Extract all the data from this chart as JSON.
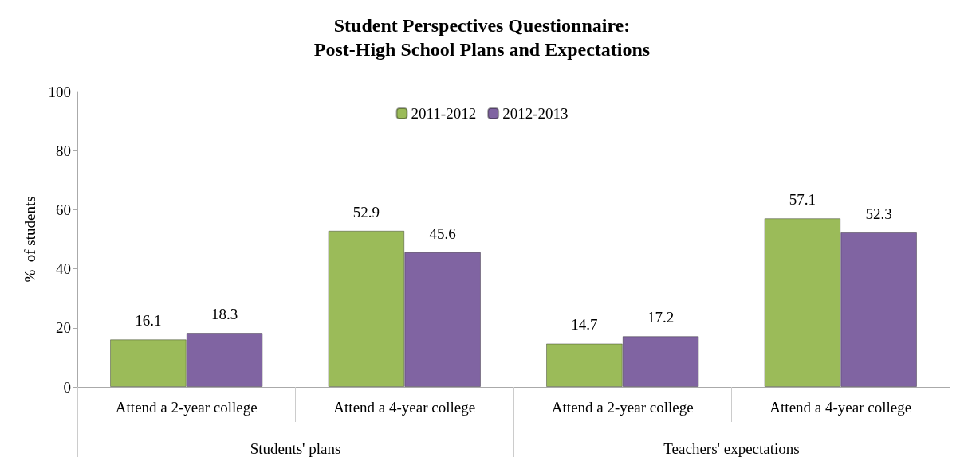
{
  "chart_data": {
    "type": "bar",
    "title": "Student Perspectives Questionnaire:\nPost-High School Plans and Expectations",
    "ylabel": "%  of students",
    "categories": [
      "Attend a 2-year college",
      "Attend a 4-year college",
      "Attend a 2-year college",
      "Attend a 4-year college"
    ],
    "series": [
      {
        "name": "2011-2012",
        "color": "#9bbb59",
        "values": [
          16.1,
          52.9,
          14.7,
          57.1
        ]
      },
      {
        "name": "2012-2013",
        "color": "#8064a2",
        "values": [
          18.3,
          45.6,
          17.2,
          52.3
        ]
      }
    ],
    "annotations": [
      "Students' plans",
      "Teachers' expectations"
    ],
    "ylim": [
      0,
      100
    ],
    "yticks": [
      0,
      20,
      40,
      60,
      80,
      100
    ],
    "grid": false,
    "legend": "top",
    "data_labels": true
  }
}
